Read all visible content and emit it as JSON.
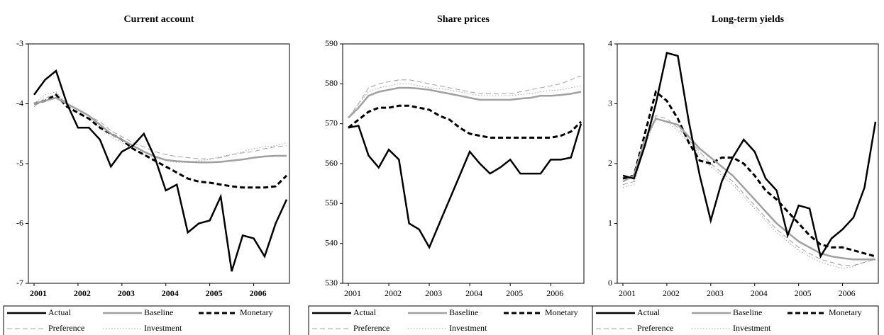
{
  "chart_data": [
    {
      "type": "line",
      "title": "Current account",
      "categories": [
        "2001",
        null,
        null,
        null,
        "2002",
        null,
        null,
        null,
        "2003",
        null,
        null,
        null,
        "2004",
        null,
        null,
        null,
        "2005",
        null,
        null,
        null,
        "2006",
        null,
        null,
        null
      ],
      "ylim": [
        -7,
        -3
      ],
      "yticks": [
        -3,
        -4,
        -5,
        -6,
        -7
      ],
      "series": [
        {
          "name": "Actual",
          "color": "#000000",
          "style": "solid",
          "values": [
            -3.85,
            -3.6,
            -3.45,
            -4.0,
            -4.4,
            -4.4,
            -4.6,
            -5.05,
            -4.8,
            -4.7,
            -4.5,
            -4.9,
            -5.45,
            -5.35,
            -6.15,
            -6.0,
            -5.95,
            -5.55,
            -6.8,
            -6.2,
            -6.25,
            -6.55,
            -6.0,
            -5.6
          ]
        },
        {
          "name": "Baseline",
          "color": "#a0a0a0",
          "style": "solid",
          "values": [
            -4.0,
            -3.95,
            -3.9,
            -4.0,
            -4.1,
            -4.2,
            -4.35,
            -4.5,
            -4.6,
            -4.7,
            -4.8,
            -4.88,
            -4.94,
            -4.96,
            -4.97,
            -4.98,
            -4.98,
            -4.97,
            -4.95,
            -4.93,
            -4.9,
            -4.88,
            -4.87,
            -4.87
          ]
        },
        {
          "name": "Monetary",
          "color": "#000000",
          "style": "dashed",
          "values": [
            -4.0,
            -3.95,
            -3.85,
            -4.05,
            -4.15,
            -4.25,
            -4.4,
            -4.5,
            -4.6,
            -4.75,
            -4.85,
            -4.95,
            -5.05,
            -5.15,
            -5.25,
            -5.3,
            -5.32,
            -5.35,
            -5.38,
            -5.4,
            -5.4,
            -5.4,
            -5.38,
            -5.2
          ]
        },
        {
          "name": "Preference",
          "color": "#a0a0a0",
          "style": "dashed",
          "values": [
            -4.05,
            -3.9,
            -3.85,
            -4.0,
            -4.1,
            -4.2,
            -4.3,
            -4.45,
            -4.55,
            -4.65,
            -4.72,
            -4.8,
            -4.85,
            -4.88,
            -4.9,
            -4.92,
            -4.92,
            -4.9,
            -4.85,
            -4.82,
            -4.8,
            -4.75,
            -4.72,
            -4.7
          ]
        },
        {
          "name": "Investment",
          "color": "#a0a0a0",
          "style": "dotted",
          "values": [
            -4.0,
            -3.85,
            -3.8,
            -4.0,
            -4.15,
            -4.25,
            -4.4,
            -4.55,
            -4.65,
            -4.75,
            -4.85,
            -4.9,
            -4.95,
            -4.98,
            -4.98,
            -4.95,
            -4.93,
            -4.88,
            -4.85,
            -4.8,
            -4.75,
            -4.72,
            -4.7,
            -4.65
          ]
        }
      ]
    },
    {
      "type": "line",
      "title": "Share prices",
      "categories": [
        "2001",
        null,
        null,
        null,
        "2002",
        null,
        null,
        null,
        "2003",
        null,
        null,
        null,
        "2004",
        null,
        null,
        null,
        "2005",
        null,
        null,
        null,
        "2006",
        null,
        null,
        null
      ],
      "ylim": [
        530,
        590
      ],
      "yticks": [
        530,
        540,
        550,
        560,
        570,
        580,
        590
      ],
      "series": [
        {
          "name": "Actual",
          "color": "#000000",
          "style": "solid",
          "values": [
            569,
            569.5,
            562,
            559,
            563.5,
            561,
            545,
            543.5,
            539,
            545,
            551,
            557,
            563,
            560,
            557.5,
            559,
            561,
            557.5,
            557.5,
            557.5,
            561,
            561,
            561.5,
            570
          ]
        },
        {
          "name": "Baseline",
          "color": "#a0a0a0",
          "style": "solid",
          "values": [
            571.5,
            574,
            577,
            578,
            578.5,
            579,
            579,
            578.8,
            578.5,
            578,
            577.5,
            577,
            576.5,
            576,
            576,
            576,
            576,
            576.3,
            576.5,
            577,
            577,
            577.2,
            577.5,
            578
          ]
        },
        {
          "name": "Monetary",
          "color": "#000000",
          "style": "dashed",
          "values": [
            569,
            571,
            573,
            574,
            574,
            574.5,
            574.5,
            574,
            573.5,
            572,
            571,
            569,
            567.5,
            567,
            566.5,
            566.5,
            566.5,
            566.5,
            566.5,
            566.5,
            566.5,
            567,
            568,
            570.5
          ]
        },
        {
          "name": "Preference",
          "color": "#a0a0a0",
          "style": "dashed",
          "values": [
            571.5,
            575,
            579,
            580,
            580.5,
            581,
            581,
            580.5,
            580,
            579.5,
            579,
            578.5,
            578,
            577.5,
            577.5,
            577.5,
            577.5,
            578,
            578.5,
            579,
            579.5,
            580,
            581,
            582
          ]
        },
        {
          "name": "Investment",
          "color": "#a0a0a0",
          "style": "dotted",
          "values": [
            571.5,
            575,
            578,
            579,
            579.5,
            580,
            580,
            579.5,
            579,
            578.8,
            578.5,
            578,
            577.5,
            577,
            577,
            577,
            577,
            577.3,
            577.5,
            578,
            578.3,
            578.5,
            579,
            579.5
          ]
        }
      ]
    },
    {
      "type": "line",
      "title": "Long-term yields",
      "categories": [
        "2001",
        null,
        null,
        null,
        "2002",
        null,
        null,
        null,
        "2003",
        null,
        null,
        null,
        "2004",
        null,
        null,
        null,
        "2005",
        null,
        null,
        null,
        "2006",
        null,
        null,
        null
      ],
      "ylim": [
        0,
        4
      ],
      "yticks": [
        0,
        1,
        2,
        3,
        4
      ],
      "series": [
        {
          "name": "Actual",
          "color": "#000000",
          "style": "solid",
          "values": [
            1.8,
            1.75,
            2.3,
            3.0,
            3.85,
            3.8,
            2.7,
            1.8,
            1.05,
            1.7,
            2.1,
            2.4,
            2.2,
            1.75,
            1.55,
            0.8,
            1.3,
            1.25,
            0.45,
            0.75,
            0.9,
            1.1,
            1.6,
            2.7
          ]
        },
        {
          "name": "Baseline",
          "color": "#a0a0a0",
          "style": "solid",
          "values": [
            1.7,
            1.8,
            2.4,
            2.75,
            2.7,
            2.65,
            2.45,
            2.25,
            2.1,
            1.95,
            1.8,
            1.6,
            1.4,
            1.2,
            1.0,
            0.85,
            0.7,
            0.6,
            0.5,
            0.45,
            0.42,
            0.4,
            0.4,
            0.4
          ]
        },
        {
          "name": "Monetary",
          "color": "#000000",
          "style": "dashed",
          "values": [
            1.75,
            1.8,
            2.5,
            3.2,
            3.05,
            2.75,
            2.35,
            2.05,
            2.0,
            2.1,
            2.1,
            2.0,
            1.8,
            1.55,
            1.4,
            1.2,
            1.0,
            0.8,
            0.65,
            0.6,
            0.6,
            0.55,
            0.5,
            0.45
          ]
        },
        {
          "name": "Preference",
          "color": "#a0a0a0",
          "style": "dashed",
          "values": [
            1.65,
            1.7,
            2.35,
            2.8,
            2.75,
            2.6,
            2.4,
            2.2,
            2.0,
            1.85,
            1.7,
            1.5,
            1.3,
            1.1,
            0.9,
            0.75,
            0.6,
            0.5,
            0.4,
            0.35,
            0.3,
            0.3,
            0.35,
            0.4
          ]
        },
        {
          "name": "Investment",
          "color": "#a0a0a0",
          "style": "dotted",
          "values": [
            1.6,
            1.65,
            2.3,
            2.75,
            2.7,
            2.55,
            2.35,
            2.15,
            1.95,
            1.8,
            1.65,
            1.45,
            1.25,
            1.05,
            0.85,
            0.7,
            0.55,
            0.45,
            0.35,
            0.3,
            0.25,
            0.28,
            0.35,
            0.45
          ]
        }
      ]
    }
  ]
}
